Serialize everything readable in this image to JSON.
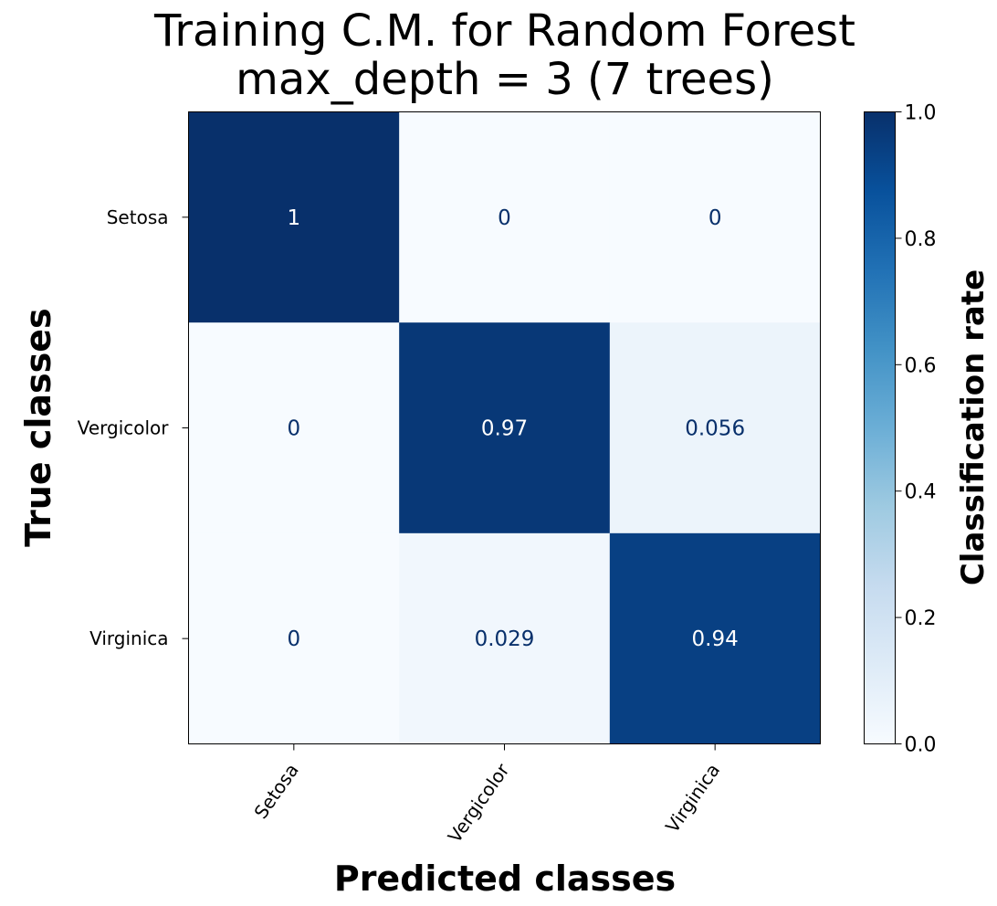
{
  "chart_data": {
    "type": "heatmap",
    "title": [
      "Training C.M. for Random Forest",
      "max_depth = 3 (7 trees)"
    ],
    "xlabel": "Predicted classes",
    "ylabel": "True classes",
    "x_categories": [
      "Setosa",
      "Vergicolor",
      "Virginica"
    ],
    "y_categories": [
      "Setosa",
      "Vergicolor",
      "Virginica"
    ],
    "values": [
      [
        1,
        0,
        0
      ],
      [
        0,
        0.97,
        0.056
      ],
      [
        0,
        0.029,
        0.94
      ]
    ],
    "value_labels": [
      [
        "1",
        "0",
        "0"
      ],
      [
        "0",
        "0.97",
        "0.056"
      ],
      [
        "0",
        "0.029",
        "0.94"
      ]
    ],
    "colormap": "Blues",
    "vmin": 0,
    "vmax": 1,
    "colorbar": {
      "label": "Classification rate",
      "ticks": [
        0.0,
        0.2,
        0.4,
        0.6,
        0.8,
        1.0
      ],
      "tick_labels": [
        "0.0",
        "0.2",
        "0.4",
        "0.6",
        "0.8",
        "1.0"
      ]
    },
    "text_colors": {
      "dark_cell": "#ffffff",
      "light_cell": "#08306b"
    },
    "grid": false
  }
}
